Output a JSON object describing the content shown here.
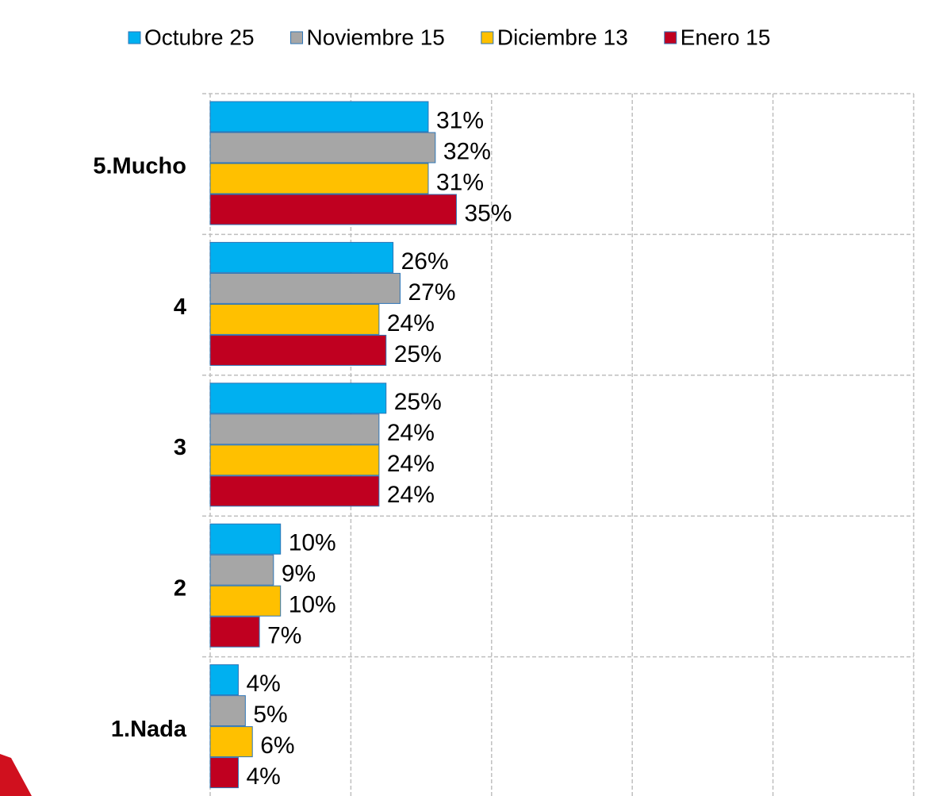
{
  "chart_data": {
    "type": "bar",
    "orientation": "horizontal",
    "categories": [
      "5.Mucho",
      "4",
      "3",
      "2",
      "1.Nada"
    ],
    "series": [
      {
        "name": "Octubre 25",
        "color": "#00b0f0",
        "values": [
          31,
          26,
          25,
          10,
          4
        ],
        "value_labels": [
          "31%",
          "26%",
          "25%",
          "10%",
          "4%"
        ]
      },
      {
        "name": "Noviembre 15",
        "color": "#a6a6a6",
        "values": [
          32,
          27,
          24,
          9,
          5
        ],
        "value_labels": [
          "32%",
          "27%",
          "24%",
          "9%",
          "5%"
        ]
      },
      {
        "name": "Diciembre 13",
        "color": "#ffc000",
        "values": [
          31,
          24,
          24,
          10,
          6
        ],
        "value_labels": [
          "31%",
          "24%",
          "24%",
          "10%",
          "6%"
        ]
      },
      {
        "name": "Enero 15",
        "color": "#c00020",
        "values": [
          35,
          25,
          24,
          7,
          4
        ],
        "value_labels": [
          "35%",
          "25%",
          "24%",
          "7%",
          "4%"
        ]
      }
    ],
    "xlim": [
      0,
      100
    ],
    "xticks": [
      0,
      20,
      40,
      60,
      80,
      100
    ],
    "grid": true,
    "legend": "top"
  }
}
